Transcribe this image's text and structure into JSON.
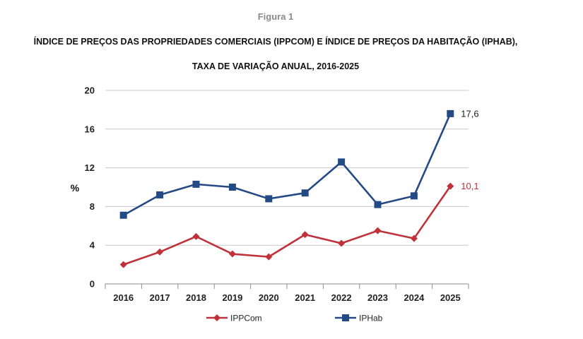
{
  "figure": {
    "label": "Figura 1",
    "title_line1": "ÍNDICE DE PREÇOS DAS PROPRIEDADES COMERCIAIS (IPPCOM) E ÍNDICE DE PREÇOS DA HABITAÇÃO (IPHAB),",
    "title_line2": "TAXA DE VARIAÇÃO ANUAL, 2016-2025"
  },
  "chart_data": {
    "type": "line",
    "title": "ÍNDICE DE PREÇOS DAS PROPRIEDADES COMERCIAIS (IPPCOM) E ÍNDICE DE PREÇOS DA HABITAÇÃO (IPHAB), TAXA DE VARIAÇÃO ANUAL, 2016-2025",
    "xlabel": "",
    "ylabel": "%",
    "x": [
      "2016",
      "2017",
      "2018",
      "2019",
      "2020",
      "2021",
      "2022",
      "2023",
      "2024",
      "2025"
    ],
    "ylim": [
      0,
      20
    ],
    "yticks": [
      "0",
      "4",
      "8",
      "12",
      "16",
      "20"
    ],
    "grid": true,
    "legend_position": "bottom",
    "series": [
      {
        "name": "IPPCom",
        "color": "#c0323a",
        "marker": "diamond",
        "values": [
          2.0,
          3.3,
          4.9,
          3.1,
          2.8,
          5.1,
          4.2,
          5.5,
          4.7,
          10.1
        ],
        "end_label": "10,1"
      },
      {
        "name": "IPHab",
        "color": "#244a86",
        "marker": "square",
        "values": [
          7.1,
          9.2,
          10.3,
          10.0,
          8.8,
          9.4,
          12.6,
          8.2,
          9.1,
          17.6
        ],
        "end_label": "17,6"
      }
    ]
  }
}
